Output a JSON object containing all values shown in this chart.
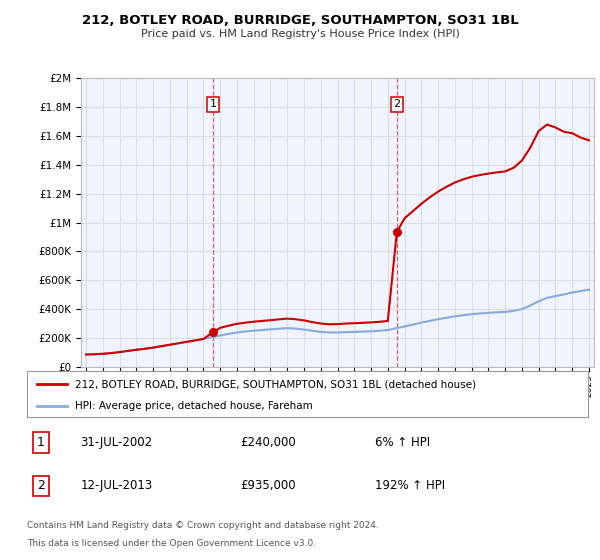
{
  "title1": "212, BOTLEY ROAD, BURRIDGE, SOUTHAMPTON, SO31 1BL",
  "title2": "Price paid vs. HM Land Registry's House Price Index (HPI)",
  "sale1_date": 2002.58,
  "sale1_price": 240000,
  "sale1_label": "1",
  "sale1_display": "31-JUL-2002",
  "sale1_amount": "£240,000",
  "sale1_pct": "6% ↑ HPI",
  "sale2_date": 2013.54,
  "sale2_price": 935000,
  "sale2_label": "2",
  "sale2_display": "12-JUL-2013",
  "sale2_amount": "£935,000",
  "sale2_pct": "192% ↑ HPI",
  "ylabel_ticks": [
    "£0",
    "£200K",
    "£400K",
    "£600K",
    "£800K",
    "£1M",
    "£1.2M",
    "£1.4M",
    "£1.6M",
    "£1.8M",
    "£2M"
  ],
  "ytick_vals": [
    0,
    200000,
    400000,
    600000,
    800000,
    1000000,
    1200000,
    1400000,
    1600000,
    1800000,
    2000000
  ],
  "xmin": 1994.7,
  "xmax": 2025.3,
  "ymin": 0,
  "ymax": 2000000,
  "line_color_red": "#cc0000",
  "line_color_blue": "#88aadd",
  "dashed_color": "#dd4444",
  "legend1": "212, BOTLEY ROAD, BURRIDGE, SOUTHAMPTON, SO31 1BL (detached house)",
  "legend2": "HPI: Average price, detached house, Fareham",
  "footnote1": "Contains HM Land Registry data © Crown copyright and database right 2024.",
  "footnote2": "This data is licensed under the Open Government Licence v3.0.",
  "hpi_years": [
    1995,
    1995.5,
    1996,
    1996.5,
    1997,
    1997.5,
    1998,
    1998.5,
    1999,
    1999.5,
    2000,
    2000.5,
    2001,
    2001.5,
    2002,
    2002.5,
    2003,
    2003.5,
    2004,
    2004.5,
    2005,
    2005.5,
    2006,
    2006.5,
    2007,
    2007.5,
    2008,
    2008.5,
    2009,
    2009.5,
    2010,
    2010.5,
    2011,
    2011.5,
    2012,
    2012.5,
    2013,
    2013.5,
    2014,
    2014.5,
    2015,
    2015.5,
    2016,
    2016.5,
    2017,
    2017.5,
    2018,
    2018.5,
    2019,
    2019.5,
    2020,
    2020.5,
    2021,
    2021.5,
    2022,
    2022.5,
    2023,
    2023.5,
    2024,
    2024.5,
    2025
  ],
  "hpi_values": [
    85000,
    87000,
    90000,
    95000,
    102000,
    110000,
    118000,
    125000,
    133000,
    143000,
    153000,
    163000,
    173000,
    183000,
    193000,
    205000,
    217000,
    228000,
    238000,
    245000,
    250000,
    255000,
    260000,
    264000,
    268000,
    265000,
    258000,
    250000,
    242000,
    238000,
    238000,
    240000,
    242000,
    244000,
    246000,
    250000,
    255000,
    268000,
    280000,
    293000,
    306000,
    318000,
    330000,
    340000,
    350000,
    358000,
    365000,
    370000,
    374000,
    378000,
    380000,
    388000,
    400000,
    425000,
    455000,
    478000,
    490000,
    502000,
    515000,
    525000,
    535000
  ],
  "prop_years_seg1": [
    1995,
    1995.5,
    1996,
    1996.5,
    1997,
    1997.5,
    1998,
    1998.5,
    1999,
    1999.5,
    2000,
    2000.5,
    2001,
    2001.5,
    2002,
    2002.58
  ],
  "prop_values_seg1": [
    85000,
    87000,
    90000,
    95000,
    102000,
    110000,
    118000,
    125000,
    133000,
    143000,
    153000,
    163000,
    173000,
    183000,
    193000,
    240000
  ],
  "prop_years_seg2": [
    2002.58,
    2003,
    2003.5,
    2004,
    2004.5,
    2005,
    2005.5,
    2006,
    2006.5,
    2007,
    2007.5,
    2008,
    2008.5,
    2009,
    2009.5,
    2010,
    2010.5,
    2011,
    2011.5,
    2012,
    2012.5,
    2013,
    2013.54
  ],
  "prop_values_seg2": [
    240000,
    270000,
    285000,
    298000,
    306000,
    313000,
    318000,
    323000,
    329000,
    334000,
    330000,
    322000,
    310000,
    300000,
    295000,
    296000,
    300000,
    302000,
    305000,
    308000,
    312000,
    318000,
    935000
  ],
  "prop_years_seg3": [
    2013.54,
    2014,
    2014.5,
    2015,
    2015.5,
    2016,
    2016.5,
    2017,
    2017.5,
    2018,
    2018.5,
    2019,
    2019.5,
    2020,
    2020.5,
    2021,
    2021.5,
    2022,
    2022.5,
    2023,
    2023.5,
    2024,
    2024.5,
    2025
  ],
  "prop_values_seg3": [
    935000,
    1030000,
    1080000,
    1130000,
    1175000,
    1215000,
    1248000,
    1278000,
    1300000,
    1318000,
    1330000,
    1340000,
    1348000,
    1355000,
    1380000,
    1430000,
    1520000,
    1635000,
    1680000,
    1660000,
    1630000,
    1620000,
    1590000,
    1570000
  ],
  "background_color": "#ffffff",
  "grid_color": "#dddddd",
  "plot_bg_color": "#f0f4ff"
}
